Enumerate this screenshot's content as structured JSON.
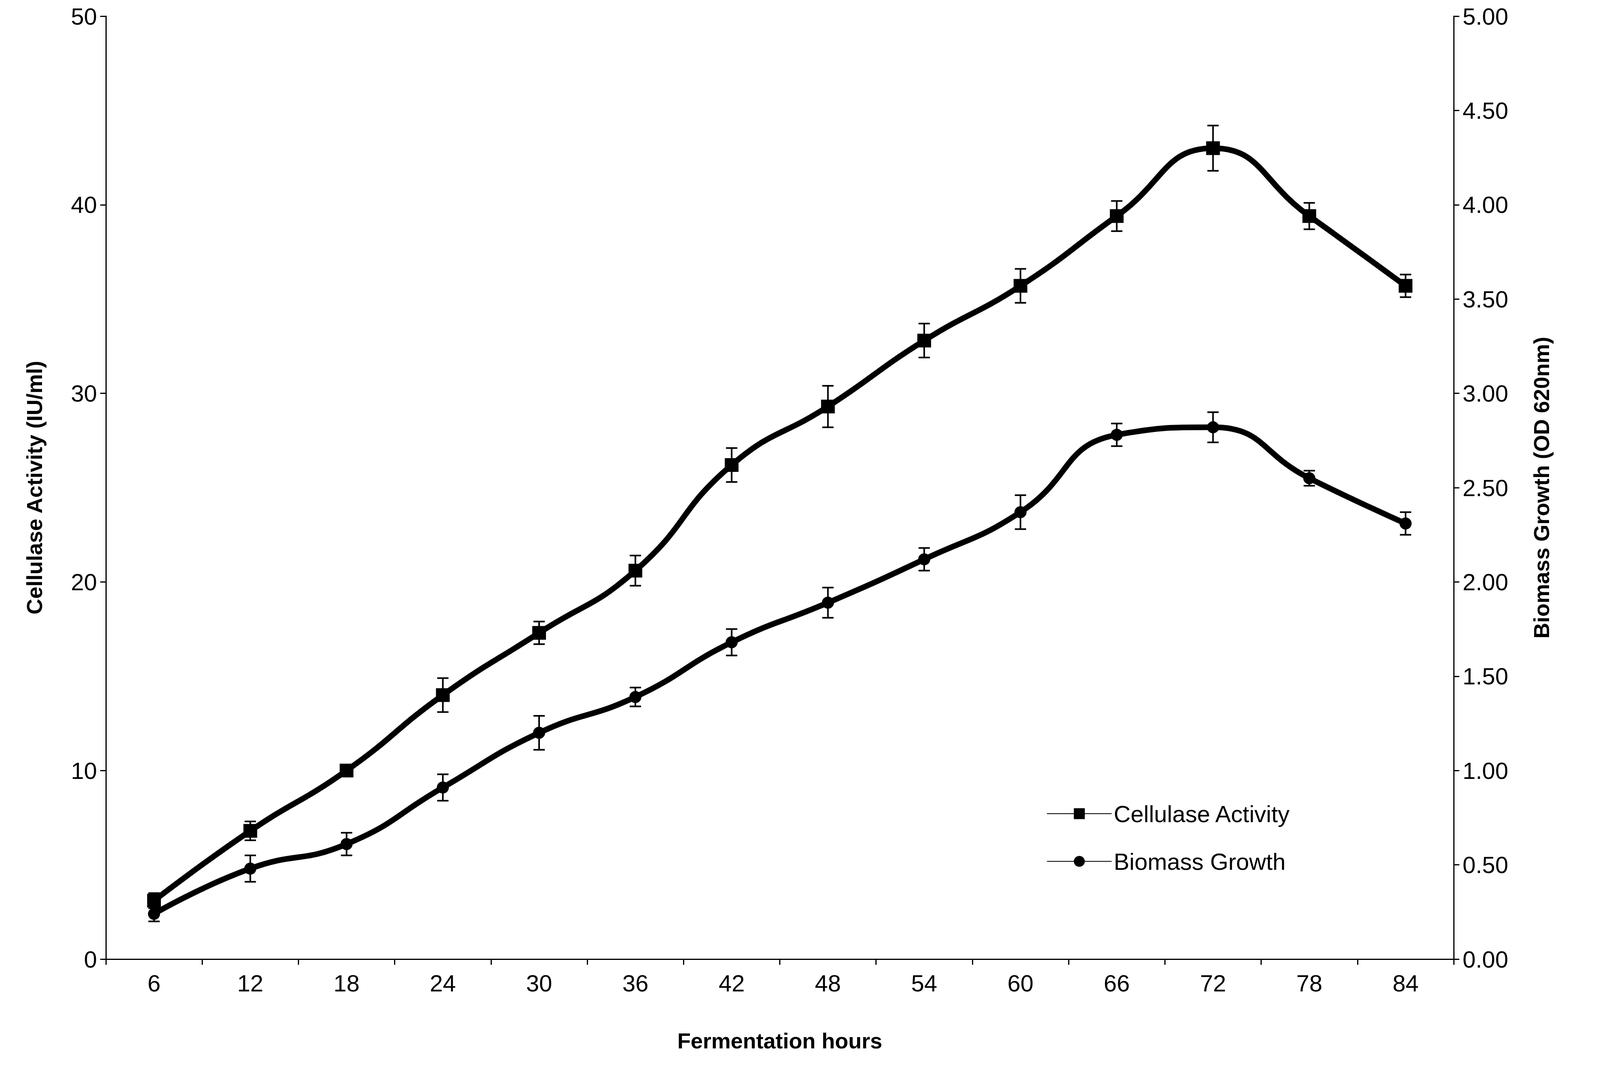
{
  "chart_data": {
    "type": "line",
    "x_label": "Fermentation hours",
    "y_label": "Cellulase Activity (IU/ml)",
    "y2_label": "Biomass Growth (OD 620nm)",
    "categories": [
      "6",
      "12",
      "18",
      "24",
      "30",
      "36",
      "42",
      "48",
      "54",
      "60",
      "66",
      "72",
      "78",
      "84"
    ],
    "ylim": [
      0,
      50
    ],
    "yticks": [
      0,
      10,
      20,
      30,
      40,
      50
    ],
    "y2lim": [
      0,
      5
    ],
    "y2ticks": [
      {
        "value": 0,
        "label": "0.00"
      },
      {
        "value": 0.5,
        "label": "0.50"
      },
      {
        "value": 1,
        "label": "1.00"
      },
      {
        "value": 1.5,
        "label": "1.50"
      },
      {
        "value": 2,
        "label": "2.00"
      },
      {
        "value": 2.5,
        "label": "2.50"
      },
      {
        "value": 3,
        "label": "3.00"
      },
      {
        "value": 3.5,
        "label": "3.50"
      },
      {
        "value": 4,
        "label": "4.00"
      },
      {
        "value": 4.5,
        "label": "4.50"
      },
      {
        "value": 5,
        "label": "5.00"
      }
    ],
    "grid": false,
    "legend": "lower right",
    "series": [
      {
        "name": "Cellulase Activity",
        "color": "#000000",
        "marker": "square",
        "values": [
          3.1,
          6.8,
          10.0,
          14.0,
          17.3,
          20.6,
          26.2,
          29.3,
          32.8,
          35.7,
          39.4,
          43.0,
          39.4,
          35.7
        ],
        "errors": [
          0.4,
          0.5,
          0.3,
          0.9,
          0.6,
          0.8,
          0.9,
          1.1,
          0.9,
          0.9,
          0.8,
          1.2,
          0.7,
          0.6
        ]
      },
      {
        "name": "Biomass Growth",
        "color": "#000000",
        "marker": "circle",
        "axis": "y2",
        "values": [
          0.24,
          0.48,
          0.61,
          0.91,
          1.2,
          1.39,
          1.68,
          1.89,
          2.12,
          2.37,
          2.78,
          2.82,
          2.55,
          2.31
        ],
        "errors": [
          0.04,
          0.07,
          0.06,
          0.07,
          0.09,
          0.05,
          0.07,
          0.08,
          0.06,
          0.09,
          0.06,
          0.08,
          0.04,
          0.06
        ]
      }
    ]
  }
}
